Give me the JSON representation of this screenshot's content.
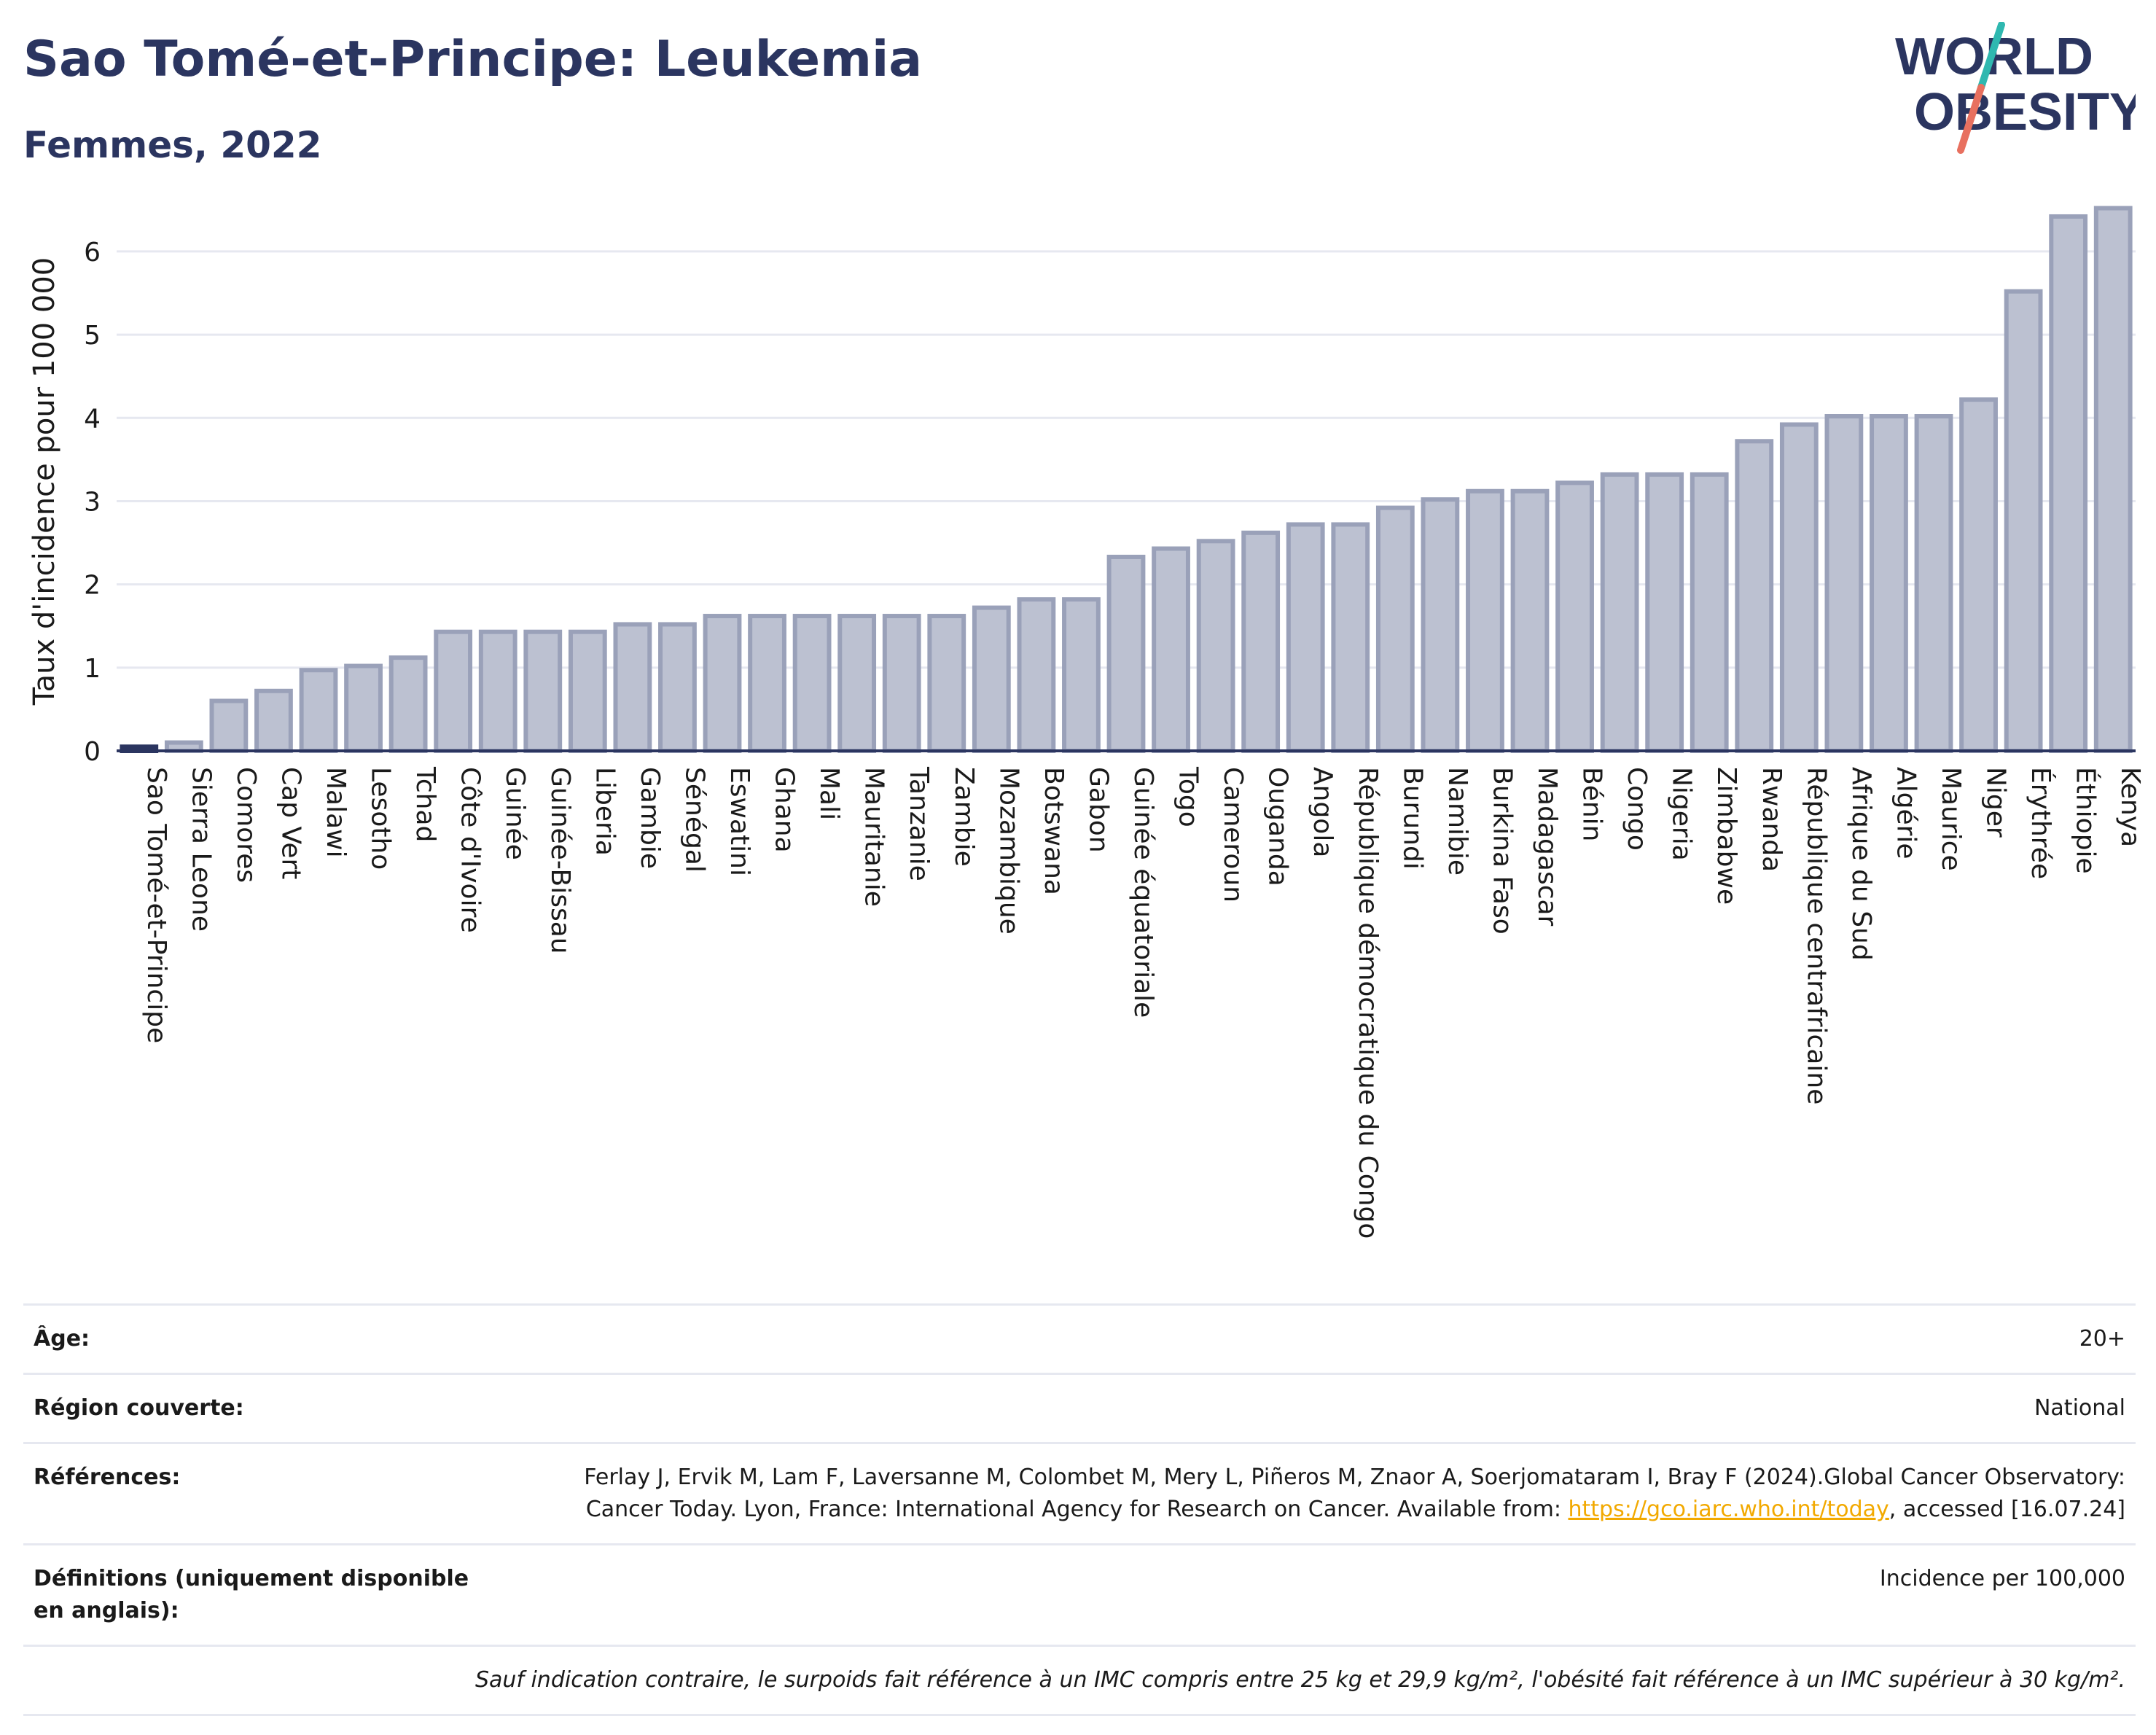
{
  "header": {
    "title": "Sao Tomé-et-Principe: Leukemia",
    "subtitle": "Femmes, 2022",
    "logo_line1": "WORLD",
    "logo_line2": "OBESITY"
  },
  "chart_data": {
    "type": "bar",
    "title": "Sao Tomé-et-Principe: Leukemia",
    "subtitle": "Femmes, 2022",
    "xlabel": "",
    "ylabel": "Taux d'incidence pour 100 000",
    "ylim": [
      0,
      6.7
    ],
    "yticks": [
      0,
      1,
      2,
      3,
      4,
      5,
      6
    ],
    "grid": true,
    "highlight_category": "Sao Tomé-et-Principe",
    "categories": [
      "Sao Tomé-et-Principe",
      "Sierra Leone",
      "Comores",
      "Cap Vert",
      "Malawi",
      "Lesotho",
      "Tchad",
      "Côte d'Ivoire",
      "Guinée",
      "Guinée-Bissau",
      "Liberia",
      "Gambie",
      "Sénégal",
      "Eswatini",
      "Ghana",
      "Mali",
      "Mauritanie",
      "Tanzanie",
      "Zambie",
      "Mozambique",
      "Botswana",
      "Gabon",
      "Guinée équatoriale",
      "Togo",
      "Cameroun",
      "Ouganda",
      "Angola",
      "République démocratique du Congo",
      "Burundi",
      "Namibie",
      "Burkina Faso",
      "Madagascar",
      "Bénin",
      "Congo",
      "Nigeria",
      "Zimbabwe",
      "Rwanda",
      "République centrafricaine",
      "Afrique du Sud",
      "Algérie",
      "Maurice",
      "Niger",
      "Érythrée",
      "Éthiopie",
      "Kenya"
    ],
    "values": [
      0.05,
      0.1,
      0.6,
      0.72,
      0.97,
      1.02,
      1.12,
      1.43,
      1.43,
      1.43,
      1.43,
      1.52,
      1.52,
      1.62,
      1.62,
      1.62,
      1.62,
      1.62,
      1.62,
      1.72,
      1.82,
      1.82,
      2.33,
      2.43,
      2.52,
      2.62,
      2.72,
      2.72,
      2.92,
      3.02,
      3.12,
      3.12,
      3.22,
      3.32,
      3.32,
      3.32,
      3.72,
      3.92,
      4.02,
      4.02,
      4.02,
      4.22,
      5.52,
      6.42,
      6.52
    ],
    "colors": {
      "bar_fill": "#bcc1d1",
      "bar_stroke": "#9aa1b9",
      "highlight": "#2b3560",
      "grid": "#e6e8f0",
      "axis": "#2b3560"
    }
  },
  "meta": {
    "age_label": "Âge:",
    "age_value": "20+",
    "region_label": "Région couverte:",
    "region_value": "National",
    "refs_label": "Références:",
    "refs_text_1": "Ferlay J, Ervik M, Lam F, Laversanne M, Colombet M, Mery L, Piñeros M, Znaor A, Soerjomataram I, Bray F (2024).Global Cancer Observatory: Cancer Today. Lyon, France: International Agency for Research on Cancer. Available from: ",
    "refs_link": "https://gco.iarc.who.int/today",
    "refs_text_2": ", accessed [16.07.24]",
    "defs_label": "Définitions (uniquement disponible en anglais):",
    "defs_value": "Incidence per 100,000",
    "note": "Sauf indication contraire, le surpoids fait référence à un IMC compris entre 25 kg et 29,9 kg/m², l'obésité fait référence à un IMC supérieur à 30 kg/m²."
  }
}
